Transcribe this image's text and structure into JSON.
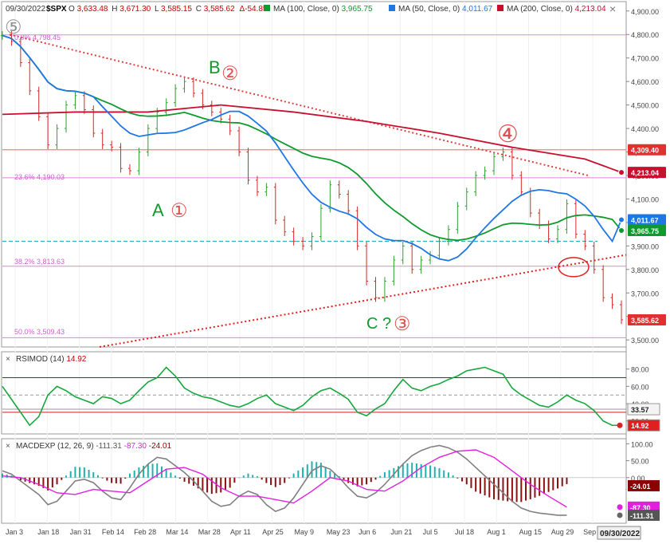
{
  "header": {
    "date": "09/30/2022",
    "symbol": "$SPX",
    "o_label": "O",
    "o_val": "3,633.48",
    "h_label": "H",
    "h_val": "3,671.30",
    "l_label": "L",
    "l_val": "3,585.15",
    "c_label": "C",
    "c_val": "3,585.62",
    "delta": "Δ-54.85",
    "ma100": "MA (100, Close, 0)",
    "ma100_val": "3,965.75",
    "ma50": "MA (50, Close, 0)",
    "ma50_val": "4,011.67",
    "ma200": "MA (200, Close, 0)",
    "ma200_val": "4,213.04"
  },
  "close_icon": "×",
  "colors": {
    "up": "#2ca02c",
    "down": "#d62728",
    "ma50": "#1f77e4",
    "ma100": "#0e9a2e",
    "ma200": "#c8102e",
    "fib": "#e080e0",
    "resist": "#f08080",
    "cyan": "#20b0c0",
    "rsi": "#15a83c",
    "macd": "#808080",
    "signal": "#e020e0"
  },
  "chart_data": [
    {
      "type": "candlestick",
      "title": "$SPX",
      "y_ticks": [
        "4,900.00",
        "4,800.00",
        "4,700.00",
        "4,600.00",
        "4,500.00",
        "4,400.00",
        "4,300.00",
        "4,200.00",
        "4,100.00",
        "4,000.00",
        "3,900.00",
        "3,800.00",
        "3,700.00",
        "3,600.00",
        "3,500.00"
      ],
      "ylim": [
        3470,
        4940
      ],
      "x_ticks": [
        "Jan 3",
        "Jan 18",
        "Jan 31",
        "Feb 14",
        "Feb 28",
        "Mar 14",
        "Mar 28",
        "Apr 11",
        "Apr 25",
        "May 9",
        "May 23",
        "Jun 6",
        "Jun 21",
        "Jul 5",
        "Jul 18",
        "Aug 1",
        "Aug 15",
        "Aug 29",
        "Sep 12"
      ],
      "close_path": [
        [
          0,
          4796
        ],
        [
          5,
          4770
        ],
        [
          10,
          4680
        ],
        [
          15,
          4560
        ],
        [
          20,
          4450
        ],
        [
          25,
          4330
        ],
        [
          30,
          4400
        ],
        [
          35,
          4500
        ],
        [
          40,
          4540
        ],
        [
          45,
          4480
        ],
        [
          50,
          4380
        ],
        [
          55,
          4330
        ],
        [
          60,
          4320
        ],
        [
          65,
          4230
        ],
        [
          70,
          4220
        ],
        [
          75,
          4300
        ],
        [
          80,
          4400
        ],
        [
          85,
          4470
        ],
        [
          90,
          4510
        ],
        [
          95,
          4570
        ],
        [
          100,
          4600
        ],
        [
          105,
          4550
        ],
        [
          110,
          4500
        ],
        [
          115,
          4470
        ],
        [
          120,
          4440
        ],
        [
          125,
          4390
        ],
        [
          130,
          4300
        ],
        [
          135,
          4180
        ],
        [
          140,
          4130
        ],
        [
          145,
          4150
        ],
        [
          150,
          4010
        ],
        [
          155,
          3960
        ],
        [
          160,
          3920
        ],
        [
          165,
          3900
        ],
        [
          170,
          3940
        ],
        [
          175,
          4060
        ],
        [
          180,
          4160
        ],
        [
          185,
          4120
        ],
        [
          190,
          4050
        ],
        [
          195,
          3900
        ],
        [
          200,
          3750
        ],
        [
          205,
          3680
        ],
        [
          210,
          3750
        ],
        [
          215,
          3840
        ],
        [
          220,
          3900
        ],
        [
          225,
          3800
        ],
        [
          230,
          3840
        ],
        [
          235,
          3860
        ],
        [
          240,
          3920
        ],
        [
          245,
          3970
        ],
        [
          250,
          4070
        ],
        [
          255,
          4130
        ],
        [
          260,
          4200
        ],
        [
          265,
          4220
        ],
        [
          270,
          4280
        ],
        [
          275,
          4300
        ],
        [
          280,
          4200
        ],
        [
          285,
          4130
        ],
        [
          290,
          4040
        ],
        [
          295,
          3990
        ],
        [
          300,
          3930
        ],
        [
          305,
          3970
        ],
        [
          310,
          4080
        ],
        [
          315,
          3950
        ],
        [
          320,
          3900
        ],
        [
          325,
          3800
        ],
        [
          330,
          3680
        ],
        [
          335,
          3650
        ],
        [
          340,
          3585.62
        ]
      ],
      "labels": [
        {
          "text": "B",
          "color": "#0e9a2e"
        },
        {
          "text": "②",
          "color": "#e05050"
        },
        {
          "text": "A",
          "color": "#0e9a2e"
        },
        {
          "text": "①",
          "color": "#e05050"
        },
        {
          "text": "C ?",
          "color": "#0e9a2e"
        },
        {
          "text": "③",
          "color": "#e05050"
        },
        {
          "text": "④",
          "color": "#e05050"
        },
        {
          "text": "⑤",
          "color": "#808080"
        }
      ],
      "fib_levels": [
        {
          "label": "0.0% 4,798.45",
          "value": 4798.45
        },
        {
          "label": "23.6% 4,190.03",
          "value": 4190.03
        },
        {
          "label": "38.2% 3,813.63",
          "value": 3813.63
        },
        {
          "label": "50.0% 3,509.43",
          "value": 3509.43
        }
      ],
      "right_badges": [
        {
          "text": "4,309.40",
          "value": 4309.4,
          "color": "#e03030"
        },
        {
          "text": "4,213.04",
          "value": 4213.04,
          "color": "#c8102e"
        },
        {
          "text": "4,011.67",
          "value": 4011.67,
          "color": "#1f77e4"
        },
        {
          "text": "3,965.75",
          "value": 3965.75,
          "color": "#0e9a2e"
        },
        {
          "text": "3,585.62",
          "value": 3585.62,
          "color": "#e03030"
        }
      ]
    },
    {
      "type": "line",
      "title": "RSIMOD (14)",
      "value": "14.92",
      "y_ticks": [
        "80.00",
        "60.00",
        "40.00",
        "20.00"
      ],
      "ylim": [
        5,
        100
      ],
      "series": [
        [
          0,
          60
        ],
        [
          5,
          45
        ],
        [
          10,
          30
        ],
        [
          15,
          15
        ],
        [
          20,
          25
        ],
        [
          25,
          50
        ],
        [
          30,
          60
        ],
        [
          35,
          55
        ],
        [
          40,
          48
        ],
        [
          45,
          44
        ],
        [
          50,
          40
        ],
        [
          55,
          48
        ],
        [
          60,
          46
        ],
        [
          65,
          40
        ],
        [
          70,
          44
        ],
        [
          75,
          55
        ],
        [
          80,
          65
        ],
        [
          85,
          70
        ],
        [
          90,
          82
        ],
        [
          95,
          72
        ],
        [
          100,
          58
        ],
        [
          105,
          52
        ],
        [
          110,
          48
        ],
        [
          115,
          46
        ],
        [
          120,
          42
        ],
        [
          125,
          38
        ],
        [
          130,
          36
        ],
        [
          135,
          40
        ],
        [
          140,
          46
        ],
        [
          145,
          50
        ],
        [
          150,
          40
        ],
        [
          155,
          36
        ],
        [
          160,
          32
        ],
        [
          165,
          38
        ],
        [
          170,
          48
        ],
        [
          175,
          55
        ],
        [
          180,
          58
        ],
        [
          185,
          52
        ],
        [
          190,
          45
        ],
        [
          195,
          30
        ],
        [
          200,
          26
        ],
        [
          205,
          34
        ],
        [
          210,
          40
        ],
        [
          215,
          55
        ],
        [
          220,
          68
        ],
        [
          225,
          58
        ],
        [
          230,
          55
        ],
        [
          235,
          60
        ],
        [
          240,
          63
        ],
        [
          245,
          68
        ],
        [
          250,
          72
        ],
        [
          255,
          78
        ],
        [
          260,
          80
        ],
        [
          265,
          82
        ],
        [
          270,
          78
        ],
        [
          275,
          74
        ],
        [
          280,
          58
        ],
        [
          285,
          50
        ],
        [
          290,
          44
        ],
        [
          295,
          38
        ],
        [
          300,
          36
        ],
        [
          305,
          42
        ],
        [
          310,
          50
        ],
        [
          315,
          44
        ],
        [
          320,
          40
        ],
        [
          325,
          32
        ],
        [
          330,
          20
        ],
        [
          335,
          14.92
        ],
        [
          340,
          14.92
        ]
      ],
      "badges": [
        "33.57",
        "14.92"
      ]
    },
    {
      "type": "line",
      "title": "MACDEXP (12, 26, 9)",
      "values": {
        "macd": "-111.31",
        "signal": "-87.30",
        "histogram": "-24.01"
      },
      "y_ticks": [
        "100.00",
        "50.00",
        "0.00"
      ],
      "ylim": [
        -135,
        115
      ],
      "macd": [
        [
          0,
          20
        ],
        [
          5,
          10
        ],
        [
          10,
          -10
        ],
        [
          15,
          -30
        ],
        [
          20,
          -50
        ],
        [
          25,
          -80
        ],
        [
          30,
          -70
        ],
        [
          35,
          -40
        ],
        [
          40,
          -10
        ],
        [
          45,
          -5
        ],
        [
          50,
          -15
        ],
        [
          55,
          -40
        ],
        [
          60,
          -60
        ],
        [
          65,
          -65
        ],
        [
          70,
          -30
        ],
        [
          75,
          10
        ],
        [
          80,
          40
        ],
        [
          85,
          60
        ],
        [
          90,
          55
        ],
        [
          95,
          35
        ],
        [
          100,
          15
        ],
        [
          105,
          -10
        ],
        [
          110,
          -40
        ],
        [
          115,
          -70
        ],
        [
          120,
          -85
        ],
        [
          125,
          -80
        ],
        [
          130,
          -55
        ],
        [
          135,
          -40
        ],
        [
          140,
          -50
        ],
        [
          145,
          -80
        ],
        [
          150,
          -100
        ],
        [
          155,
          -90
        ],
        [
          160,
          -60
        ],
        [
          165,
          -20
        ],
        [
          170,
          20
        ],
        [
          175,
          35
        ],
        [
          180,
          25
        ],
        [
          185,
          0
        ],
        [
          190,
          -30
        ],
        [
          195,
          -55
        ],
        [
          200,
          -60
        ],
        [
          205,
          -45
        ],
        [
          210,
          -20
        ],
        [
          215,
          10
        ],
        [
          220,
          40
        ],
        [
          225,
          65
        ],
        [
          230,
          80
        ],
        [
          235,
          90
        ],
        [
          240,
          95
        ],
        [
          245,
          88
        ],
        [
          250,
          75
        ],
        [
          255,
          55
        ],
        [
          260,
          30
        ],
        [
          265,
          5
        ],
        [
          270,
          -20
        ],
        [
          275,
          -45
        ],
        [
          280,
          -70
        ],
        [
          285,
          -90
        ],
        [
          290,
          -100
        ],
        [
          295,
          -105
        ],
        [
          300,
          -108
        ],
        [
          305,
          -111.31
        ],
        [
          310,
          -111.31
        ]
      ],
      "signal": [
        [
          0,
          5
        ],
        [
          10,
          0
        ],
        [
          20,
          -20
        ],
        [
          30,
          -45
        ],
        [
          40,
          -50
        ],
        [
          50,
          -35
        ],
        [
          60,
          -40
        ],
        [
          70,
          -45
        ],
        [
          80,
          -10
        ],
        [
          90,
          25
        ],
        [
          100,
          30
        ],
        [
          110,
          10
        ],
        [
          120,
          -30
        ],
        [
          130,
          -55
        ],
        [
          140,
          -55
        ],
        [
          150,
          -65
        ],
        [
          160,
          -75
        ],
        [
          170,
          -40
        ],
        [
          180,
          0
        ],
        [
          190,
          -10
        ],
        [
          200,
          -35
        ],
        [
          210,
          -40
        ],
        [
          220,
          -10
        ],
        [
          230,
          30
        ],
        [
          240,
          60
        ],
        [
          250,
          78
        ],
        [
          260,
          82
        ],
        [
          270,
          60
        ],
        [
          280,
          20
        ],
        [
          290,
          -20
        ],
        [
          300,
          -55
        ],
        [
          310,
          -87.3
        ]
      ]
    }
  ]
}
